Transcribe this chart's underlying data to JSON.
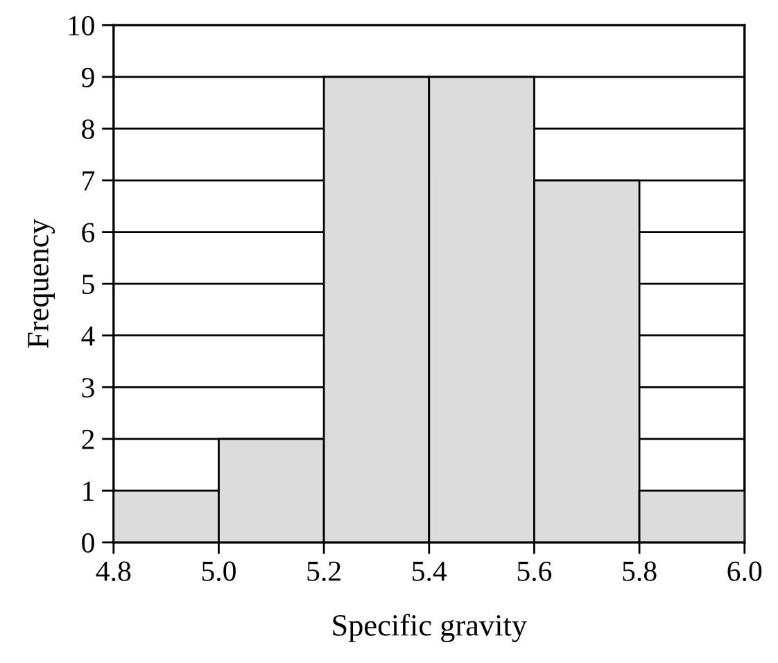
{
  "chart_data": {
    "type": "histogram",
    "xlabel": "Specific gravity",
    "ylabel": "Frequency",
    "bins": [
      4.8,
      5.0,
      5.2,
      5.4,
      5.6,
      5.8,
      6.0
    ],
    "values": [
      1,
      2,
      9,
      9,
      7,
      1
    ],
    "color": "#dcdcdc",
    "xlim": [
      4.8,
      6.0
    ],
    "xticks": [
      {
        "value": 4.8,
        "label": "4.8"
      },
      {
        "value": 5.0,
        "label": "5.0"
      },
      {
        "value": 5.2,
        "label": "5.2"
      },
      {
        "value": 5.4,
        "label": "5.4"
      },
      {
        "value": 5.6,
        "label": "5.6"
      },
      {
        "value": 5.8,
        "label": "5.8"
      },
      {
        "value": 6.0,
        "label": "6.0"
      }
    ],
    "ylim": [
      0,
      10
    ],
    "yticks": [
      0,
      1,
      2,
      3,
      4,
      5,
      6,
      7,
      8,
      9,
      10
    ],
    "grid": "y"
  }
}
